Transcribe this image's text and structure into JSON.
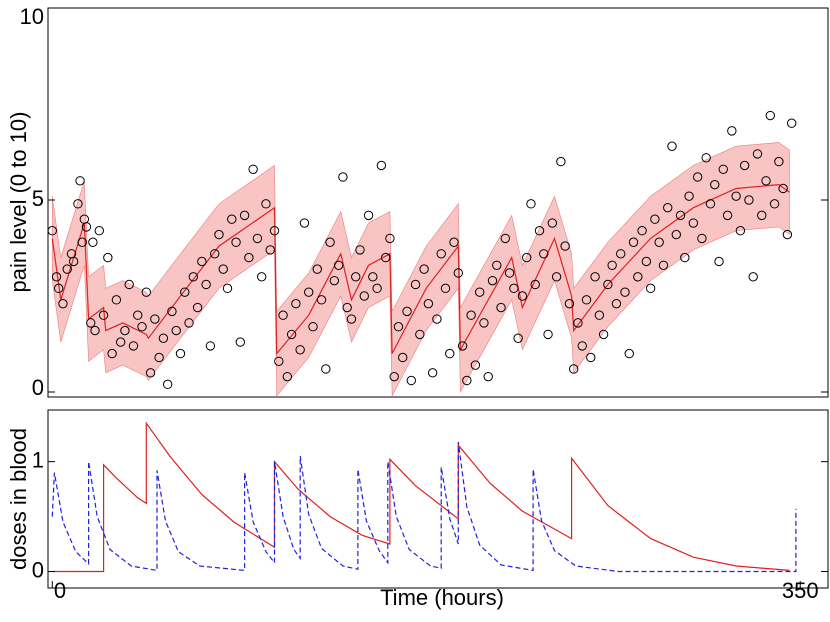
{
  "chart_data": [
    {
      "type": "scatter",
      "ylabel": "pain level (0 to 10)",
      "xlim": [
        -2,
        363
      ],
      "ylim": [
        -0.13,
        10
      ],
      "yticks": [
        0,
        5,
        10
      ],
      "marker_color": "#000000",
      "x": [
        0,
        2,
        3,
        5,
        7,
        9,
        10,
        12,
        13,
        14,
        15,
        16,
        18,
        19,
        20,
        22,
        24,
        26,
        28,
        30,
        32,
        34,
        36,
        38,
        40,
        42,
        44,
        46,
        48,
        50,
        52,
        54,
        56,
        58,
        60,
        62,
        64,
        66,
        68,
        70,
        72,
        74,
        76,
        78,
        80,
        82,
        84,
        86,
        88,
        90,
        92,
        94,
        96,
        98,
        100,
        102,
        104,
        106,
        108,
        110,
        112,
        114,
        116,
        118,
        120,
        122,
        124,
        126,
        128,
        130,
        132,
        134,
        136,
        138,
        140,
        142,
        144,
        146,
        148,
        150,
        152,
        154,
        156,
        158,
        160,
        162,
        164,
        166,
        168,
        170,
        172,
        174,
        176,
        178,
        180,
        182,
        184,
        186,
        188,
        190,
        192,
        194,
        196,
        198,
        200,
        202,
        204,
        206,
        208,
        210,
        212,
        214,
        216,
        218,
        220,
        222,
        224,
        226,
        228,
        230,
        232,
        234,
        236,
        238,
        240,
        242,
        244,
        246,
        248,
        250,
        252,
        254,
        256,
        258,
        260,
        262,
        264,
        266,
        268,
        270,
        272,
        274,
        276,
        278,
        280,
        282,
        284,
        286,
        288,
        290,
        292,
        294,
        296,
        298,
        300,
        302,
        304,
        306,
        308,
        310,
        312,
        314,
        316,
        318,
        320,
        322,
        324,
        326,
        328,
        330,
        332,
        334,
        336,
        338,
        340,
        342,
        344,
        346
      ],
      "y": [
        4.2,
        3.0,
        2.7,
        2.3,
        3.2,
        3.6,
        3.4,
        4.9,
        5.5,
        3.9,
        4.5,
        4.3,
        1.8,
        3.9,
        1.6,
        4.2,
        2.0,
        3.5,
        1.0,
        2.4,
        1.3,
        1.6,
        2.8,
        1.2,
        2.0,
        1.7,
        2.6,
        0.5,
        1.9,
        0.9,
        1.4,
        0.2,
        2.1,
        1.6,
        1.0,
        2.6,
        1.8,
        3.0,
        2.2,
        3.4,
        2.8,
        1.2,
        3.6,
        4.1,
        3.2,
        2.7,
        4.5,
        3.9,
        1.3,
        4.6,
        3.5,
        5.8,
        4.0,
        3.0,
        4.9,
        3.7,
        4.2,
        0.8,
        2.0,
        0.4,
        1.5,
        2.3,
        1.1,
        4.4,
        2.6,
        1.7,
        3.2,
        2.4,
        0.6,
        3.9,
        2.9,
        3.3,
        5.6,
        2.2,
        1.9,
        3.0,
        3.7,
        2.5,
        4.6,
        3.0,
        2.7,
        5.9,
        3.5,
        4.0,
        0.4,
        1.7,
        0.9,
        2.1,
        0.3,
        2.8,
        1.5,
        3.2,
        2.3,
        0.5,
        1.9,
        3.6,
        2.7,
        1.0,
        3.9,
        3.1,
        1.2,
        0.3,
        2.0,
        0.7,
        2.6,
        1.8,
        0.4,
        2.9,
        3.3,
        2.2,
        4.0,
        3.1,
        2.7,
        1.4,
        2.5,
        3.5,
        4.9,
        2.8,
        4.2,
        3.6,
        1.5,
        4.4,
        3.0,
        6.0,
        3.8,
        2.3,
        0.6,
        1.8,
        1.2,
        2.4,
        0.9,
        3.0,
        2.0,
        1.5,
        2.8,
        3.3,
        2.3,
        3.6,
        2.6,
        1.0,
        3.9,
        3.0,
        4.2,
        3.4,
        2.7,
        4.5,
        3.9,
        3.3,
        4.8,
        6.4,
        4.1,
        4.6,
        3.5,
        5.1,
        4.4,
        5.6,
        4.0,
        6.1,
        4.9,
        5.4,
        3.4,
        5.8,
        4.6,
        6.8,
        5.1,
        4.2,
        5.9,
        5.0,
        3.0,
        6.2,
        4.6,
        5.5,
        7.2,
        4.9,
        6.0,
        5.3,
        4.1,
        7.0
      ],
      "series": [
        {
          "color": "#e02020",
          "style": "solid",
          "band_color": "#f8c4c4",
          "x": [
            0,
            4,
            15,
            17,
            24,
            25,
            33,
            44,
            45,
            60,
            78,
            104,
            105,
            120,
            135,
            140,
            148,
            158,
            159,
            175,
            190,
            191,
            205,
            215,
            220,
            235,
            243,
            244,
            260,
            280,
            300,
            320,
            340,
            345
          ],
          "values": [
            4.0,
            2.4,
            4.4,
            1.9,
            2.2,
            1.6,
            1.8,
            1.5,
            1.4,
            2.5,
            3.8,
            4.8,
            1.0,
            2.0,
            3.6,
            2.4,
            3.3,
            3.6,
            1.0,
            2.7,
            3.8,
            1.1,
            2.5,
            3.5,
            2.2,
            4.0,
            2.5,
            1.6,
            2.8,
            4.0,
            4.8,
            5.3,
            5.4,
            5.2
          ],
          "band_upper": [
            5.1,
            3.5,
            5.5,
            3.0,
            3.3,
            2.7,
            2.9,
            2.6,
            2.5,
            3.6,
            4.9,
            5.9,
            2.1,
            3.1,
            4.7,
            3.5,
            4.4,
            4.7,
            2.1,
            3.8,
            4.9,
            2.2,
            3.6,
            4.6,
            3.3,
            5.1,
            3.6,
            2.7,
            3.9,
            5.1,
            5.9,
            6.4,
            6.5,
            6.3
          ],
          "band_lower": [
            2.9,
            1.3,
            3.3,
            0.8,
            1.1,
            0.5,
            0.7,
            0.4,
            0.3,
            1.4,
            2.7,
            3.7,
            -0.1,
            0.9,
            2.5,
            1.3,
            2.2,
            2.5,
            -0.1,
            1.6,
            2.7,
            0.0,
            1.4,
            2.4,
            1.1,
            2.9,
            1.4,
            0.5,
            1.7,
            2.9,
            3.7,
            4.2,
            4.3,
            4.1
          ]
        }
      ]
    },
    {
      "type": "line",
      "ylabel": "doses in blood",
      "xlabel": "Time (hours)",
      "xlim": [
        -2,
        363
      ],
      "ylim": [
        -0.15,
        1.47
      ],
      "yticks": [
        0,
        1
      ],
      "xticks": [
        0,
        350
      ],
      "series": [
        {
          "color": "#e02020",
          "style": "solid",
          "x": [
            0,
            24,
            24,
            30,
            40,
            44,
            44,
            55,
            70,
            85,
            104,
            104,
            115,
            130,
            145,
            158,
            158,
            170,
            190,
            190,
            205,
            220,
            243,
            243,
            260,
            280,
            300,
            320,
            345
          ],
          "values": [
            0,
            0,
            0.97,
            0.85,
            0.67,
            0.62,
            1.35,
            1.05,
            0.7,
            0.45,
            0.22,
            1.0,
            0.75,
            0.5,
            0.33,
            0.25,
            1.02,
            0.78,
            0.48,
            1.15,
            0.8,
            0.55,
            0.3,
            1.03,
            0.6,
            0.3,
            0.13,
            0.05,
            0.01
          ]
        },
        {
          "color": "#2020e0",
          "style": "dashed",
          "x": [
            0,
            1,
            5,
            11,
            17,
            17,
            21,
            27,
            37,
            49,
            49,
            53,
            59,
            69,
            90,
            90,
            94,
            100,
            104,
            104,
            108,
            113,
            116,
            116,
            120,
            126,
            136,
            143,
            143,
            147,
            153,
            157,
            157,
            161,
            167,
            177,
            182,
            182,
            186,
            190,
            190,
            194,
            200,
            210,
            225,
            225,
            229,
            235,
            245,
            265,
            348,
            348
          ],
          "values": [
            0.5,
            0.9,
            0.45,
            0.18,
            0.07,
            1.0,
            0.5,
            0.2,
            0.05,
            0.01,
            0.92,
            0.46,
            0.18,
            0.05,
            0.01,
            0.9,
            0.45,
            0.18,
            0.08,
            1.0,
            0.5,
            0.2,
            0.12,
            1.05,
            0.52,
            0.21,
            0.05,
            0.02,
            0.93,
            0.46,
            0.19,
            0.08,
            1.0,
            0.5,
            0.2,
            0.05,
            0.03,
            0.95,
            0.48,
            0.25,
            1.18,
            0.59,
            0.24,
            0.06,
            0.01,
            0.93,
            0.46,
            0.19,
            0.05,
            0.0,
            0.0,
            0.57
          ]
        }
      ]
    }
  ]
}
